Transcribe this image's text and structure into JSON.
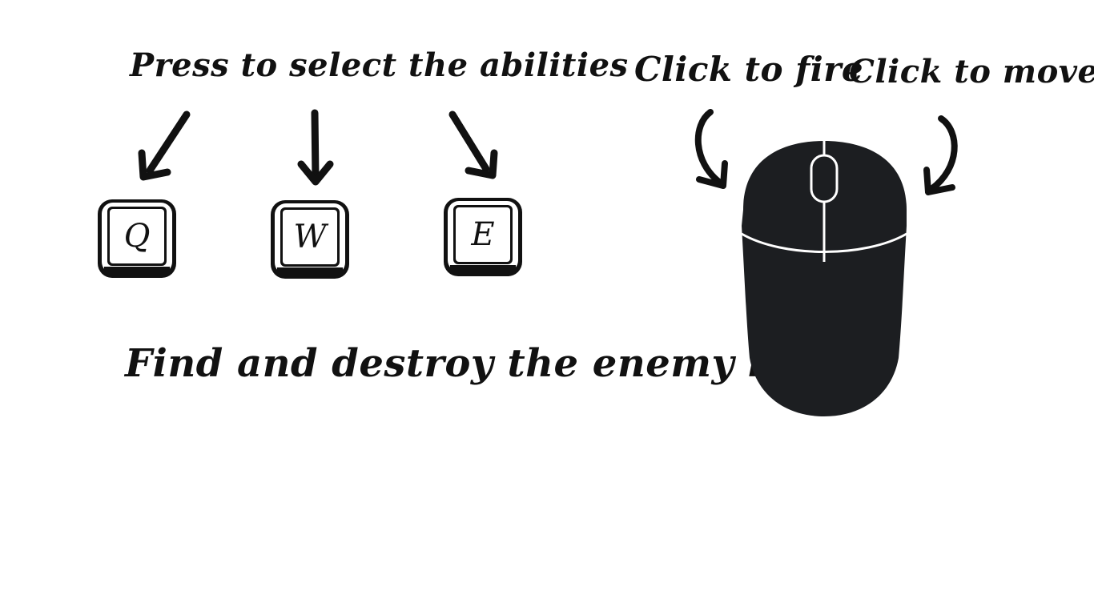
{
  "instructions": {
    "abilities_label": "Press to select the abilities",
    "fire_label": "Click to fire",
    "move_label": "Click to move",
    "objective": "Find and destroy the enemy base!"
  },
  "keys": [
    {
      "letter": "Q"
    },
    {
      "letter": "W"
    },
    {
      "letter": "E"
    }
  ],
  "icons": {
    "key": "keyboard-key-icon",
    "arrow": "hand-drawn-arrow-icon",
    "mouse": "computer-mouse-icon"
  },
  "colors": {
    "ink": "#111111",
    "mouse_body": "#1c1e21",
    "background": "#ffffff"
  }
}
